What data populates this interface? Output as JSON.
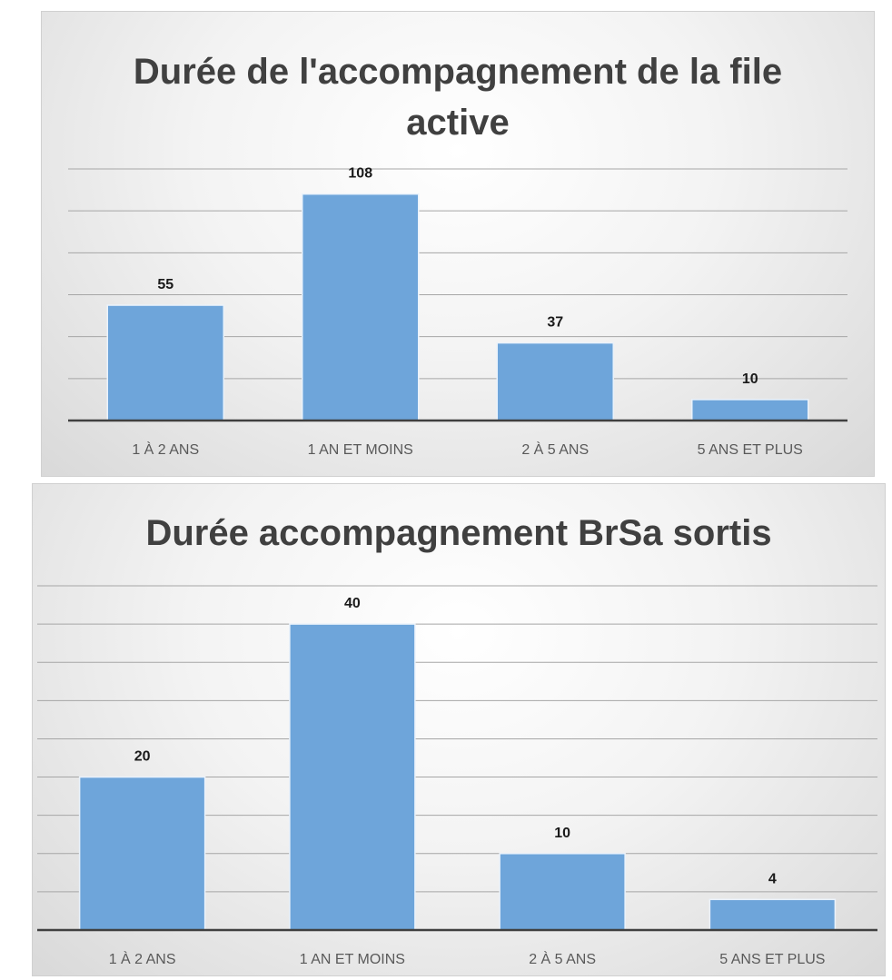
{
  "chart_data": [
    {
      "type": "bar",
      "title": "Durée de l'accompagnement de la file active",
      "categories": [
        "1 À 2 ANS",
        "1 AN ET MOINS",
        "2 À 5 ANS",
        "5 ANS ET PLUS"
      ],
      "values": [
        55,
        108,
        37,
        10
      ],
      "color": "#6ea5da",
      "ylim": [
        0,
        120
      ],
      "yticks": [
        0,
        20,
        40,
        60,
        80,
        100,
        120
      ],
      "grid": true
    },
    {
      "type": "bar",
      "title": "Durée accompagnement BrSa sortis",
      "categories": [
        "1 À 2 ANS",
        "1 AN ET MOINS",
        "2 À 5 ANS",
        "5 ANS ET PLUS"
      ],
      "values": [
        20,
        40,
        10,
        4
      ],
      "color": "#6ea5da",
      "ylim": [
        0,
        45
      ],
      "yticks": [
        0,
        5,
        10,
        15,
        20,
        25,
        30,
        35,
        40,
        45
      ],
      "grid": true
    }
  ]
}
